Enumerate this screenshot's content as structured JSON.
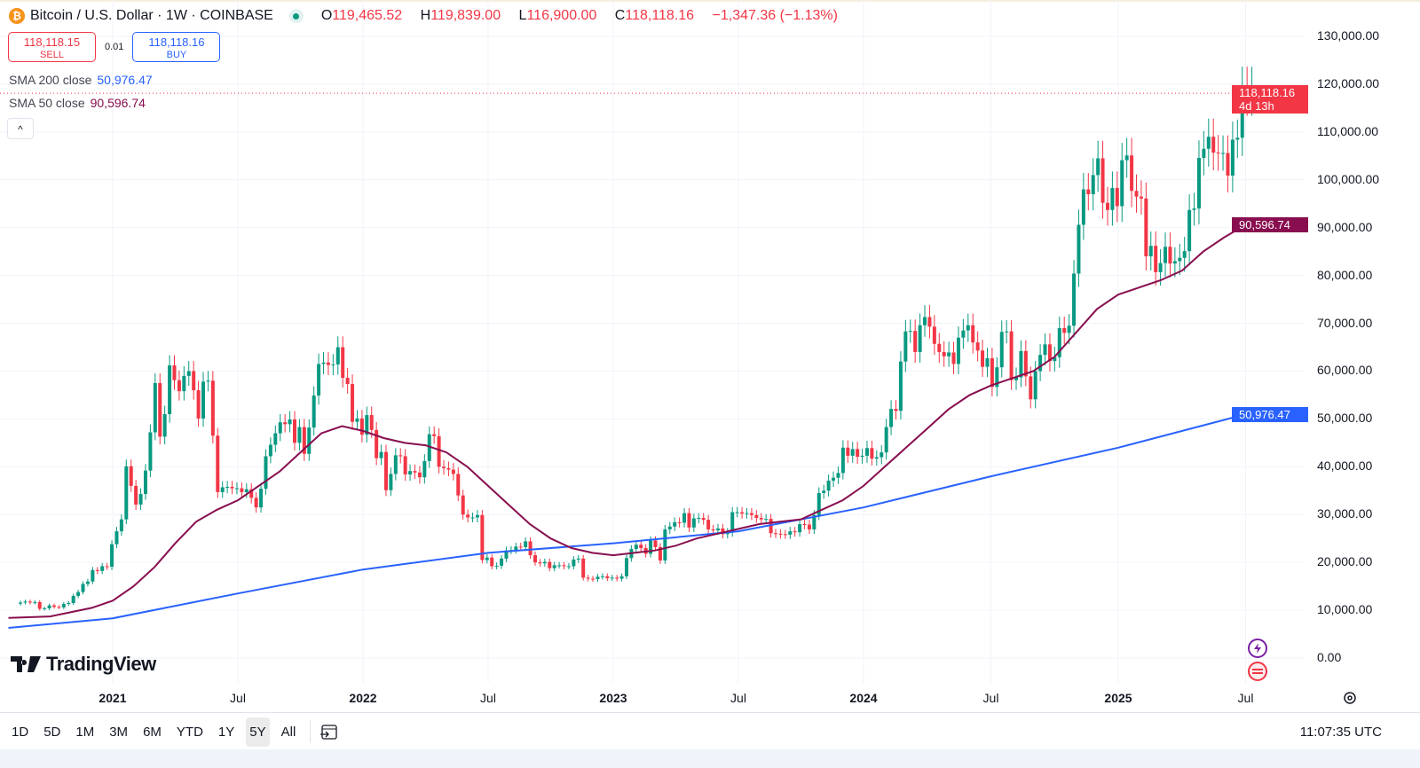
{
  "header": {
    "symbol": "Bitcoin / U.S. Dollar · 1W · COINBASE",
    "icon": "bitcoin-icon",
    "status": "market-open-dot",
    "ohlc": {
      "o_label": "O",
      "o": "119,465.52",
      "h_label": "H",
      "h": "119,839.00",
      "l_label": "L",
      "l": "116,900.00",
      "c_label": "C",
      "c": "118,118.16",
      "change": "−1,347.36 (−1.13%)"
    }
  },
  "trade": {
    "sell_price": "118,118.15",
    "sell_label": "SELL",
    "spread": "0.01",
    "buy_price": "118,118.16",
    "buy_label": "BUY"
  },
  "indicators": [
    {
      "label": "SMA 200 close",
      "value": "50,976.47",
      "color": "#2962ff"
    },
    {
      "label": "SMA 50 close",
      "value": "90,596.74",
      "color": "#880e4f"
    }
  ],
  "price_tag": {
    "price": "118,118.16",
    "countdown": "4d 13h",
    "color": "#f23645"
  },
  "bottom": {
    "ranges": [
      "1D",
      "5D",
      "1M",
      "3M",
      "6M",
      "YTD",
      "1Y",
      "5Y",
      "All"
    ],
    "active": "5Y",
    "clock": "11:07:35 UTC",
    "goto_icon": "calendar-goto-icon",
    "settings_icon": "gear-icon"
  },
  "logo": "TradingView",
  "colors": {
    "up": "#089981",
    "down": "#f23645",
    "grid": "#f0f3fa"
  },
  "chart_data": {
    "type": "candlestick",
    "interval": "1W",
    "yticks": [
      "130,000.00",
      "120,000.00",
      "110,000.00",
      "100,000.00",
      "90,000.00",
      "80,000.00",
      "70,000.00",
      "60,000.00",
      "50,000.00",
      "40,000.00",
      "30,000.00",
      "20,000.00",
      "10,000.00",
      "0.00"
    ],
    "ylim": [
      0,
      130000
    ],
    "xticks": [
      {
        "label": "2021",
        "date": "2021-01",
        "major": true
      },
      {
        "label": "Jul",
        "date": "2021-07"
      },
      {
        "label": "2022",
        "date": "2022-01",
        "major": true
      },
      {
        "label": "Jul",
        "date": "2022-07"
      },
      {
        "label": "2023",
        "date": "2023-01",
        "major": true
      },
      {
        "label": "Jul",
        "date": "2023-07"
      },
      {
        "label": "2024",
        "date": "2024-01",
        "major": true
      },
      {
        "label": "Jul",
        "date": "2024-07"
      },
      {
        "label": "2025",
        "date": "2025-01",
        "major": true
      },
      {
        "label": "Jul",
        "date": "2025-07"
      }
    ],
    "weekly_close_thousands": [
      11.6,
      11.8,
      11.6,
      11.7,
      10.3,
      10.4,
      11.0,
      10.7,
      10.6,
      11.3,
      11.5,
      13.0,
      13.8,
      15.5,
      16.0,
      18.4,
      18.2,
      19.2,
      19.1,
      23.8,
      26.5,
      29.0,
      40.1,
      36.0,
      32.1,
      34.3,
      39.2,
      47.2,
      57.5,
      46.3,
      51.0,
      61.2,
      58.1,
      55.8,
      59.0,
      60.0,
      56.0,
      50.1,
      57.8,
      58.0,
      46.5,
      34.7,
      35.7,
      35.8,
      35.5,
      35.5,
      34.7,
      35.3,
      33.5,
      31.5,
      35.4,
      42.2,
      44.6,
      47.0,
      49.3,
      48.9,
      49.9,
      45.0,
      48.3,
      42.7,
      48.2,
      54.9,
      61.5,
      61.8,
      61.3,
      61.4,
      65.0,
      58.6,
      57.3,
      49.4,
      50.1,
      46.7,
      50.8,
      47.7,
      41.8,
      43.1,
      35.1,
      38.5,
      42.4,
      42.2,
      38.4,
      39.1,
      38.8,
      37.8,
      41.2,
      46.8,
      46.4,
      40.0,
      39.7,
      39.4,
      38.5,
      34.0,
      30.0,
      29.4,
      29.4,
      29.9,
      20.5,
      21.0,
      19.2,
      19.3,
      20.8,
      22.5,
      22.6,
      23.3,
      23.2,
      24.4,
      21.5,
      20.0,
      19.8,
      20.1,
      18.8,
      19.4,
      19.4,
      19.2,
      19.2,
      20.6,
      20.8,
      16.8,
      16.6,
      16.5,
      17.0,
      17.1,
      16.7,
      16.8,
      16.6,
      17.1,
      20.9,
      22.8,
      23.7,
      23.0,
      21.8,
      24.6,
      23.2,
      20.4,
      26.9,
      27.5,
      28.4,
      28.3,
      30.3,
      27.3,
      29.2,
      29.3,
      28.9,
      26.9,
      26.7,
      27.1,
      25.9,
      26.3,
      30.5,
      30.5,
      30.2,
      30.3,
      29.9,
      29.3,
      29.0,
      29.1,
      26.1,
      26.0,
      25.9,
      25.8,
      26.5,
      26.3,
      28.0,
      27.9,
      26.9,
      29.9,
      34.5,
      35.0,
      37.1,
      37.7,
      38.7,
      44.0,
      42.3,
      43.7,
      42.1,
      42.3,
      43.9,
      41.7,
      42.0,
      43.0,
      48.3,
      52.1,
      51.7,
      62.0,
      68.3,
      68.4,
      64.0,
      69.6,
      71.3,
      69.3,
      65.7,
      64.0,
      63.1,
      63.9,
      61.5,
      67.0,
      68.5,
      69.6,
      66.0,
      64.3,
      60.9,
      62.7,
      56.7,
      60.8,
      68.2,
      68.3,
      58.1,
      58.7,
      64.2,
      58.9,
      54.1,
      60.0,
      63.4,
      65.6,
      62.1,
      62.9,
      69.0,
      68.0,
      69.5,
      80.4,
      90.6,
      98.0,
      97.0,
      101.0,
      104.5,
      95.2,
      93.7,
      98.3,
      94.5,
      104.1,
      105.1,
      97.7,
      96.5,
      96.1,
      84.0,
      86.2,
      80.7,
      82.6,
      86.0,
      82.5,
      83.0,
      83.7,
      85.1,
      93.7,
      94.0,
      104.6,
      106.5,
      109.0,
      105.7,
      105.6,
      105.6,
      100.9,
      108.4,
      108.8,
      119.5,
      117.5,
      119.47,
      118.12
    ],
    "last_candle": {
      "open": 119465.52,
      "high": 119839.0,
      "low": 116900.0,
      "close": 118118.16
    },
    "series": [
      {
        "name": "SMA 200 close",
        "color": "#2962ff",
        "points": [
          [
            "2020-08",
            6.3
          ],
          [
            "2021-01",
            8.3
          ],
          [
            "2021-07",
            13.5
          ],
          [
            "2022-01",
            18.5
          ],
          [
            "2022-07",
            22.0
          ],
          [
            "2023-01",
            24.0
          ],
          [
            "2023-07",
            26.5
          ],
          [
            "2024-01",
            31.5
          ],
          [
            "2024-07",
            38.0
          ],
          [
            "2025-01",
            44.0
          ],
          [
            "2025-07",
            50.98
          ]
        ]
      },
      {
        "name": "SMA 50 close",
        "color": "#880e4f",
        "points": [
          [
            "2020-08",
            8.4
          ],
          [
            "2020-10",
            8.7
          ],
          [
            "2020-12",
            10.5
          ],
          [
            "2021-01",
            12.0
          ],
          [
            "2021-02",
            15
          ],
          [
            "2021-03",
            19
          ],
          [
            "2021-04",
            24
          ],
          [
            "2021-05",
            28.5
          ],
          [
            "2021-06",
            31
          ],
          [
            "2021-07",
            33
          ],
          [
            "2021-08",
            36
          ],
          [
            "2021-09",
            39
          ],
          [
            "2021-10",
            43
          ],
          [
            "2021-11",
            47
          ],
          [
            "2021-12",
            48.5
          ],
          [
            "2022-01",
            47.5
          ],
          [
            "2022-02",
            46
          ],
          [
            "2022-03",
            45
          ],
          [
            "2022-04",
            44.5
          ],
          [
            "2022-05",
            43
          ],
          [
            "2022-06",
            40
          ],
          [
            "2022-07",
            36
          ],
          [
            "2022-08",
            32
          ],
          [
            "2022-09",
            28
          ],
          [
            "2022-10",
            25
          ],
          [
            "2022-11",
            23
          ],
          [
            "2022-12",
            22
          ],
          [
            "2023-01",
            21.5
          ],
          [
            "2023-02",
            22
          ],
          [
            "2023-03",
            22.5
          ],
          [
            "2023-04",
            23.5
          ],
          [
            "2023-05",
            25
          ],
          [
            "2023-06",
            26
          ],
          [
            "2023-07",
            27
          ],
          [
            "2023-08",
            28
          ],
          [
            "2023-09",
            28.5
          ],
          [
            "2023-10",
            29
          ],
          [
            "2023-11",
            31
          ],
          [
            "2023-12",
            33
          ],
          [
            "2024-01",
            36
          ],
          [
            "2024-02",
            40
          ],
          [
            "2024-03",
            44
          ],
          [
            "2024-04",
            48
          ],
          [
            "2024-05",
            52
          ],
          [
            "2024-06",
            55
          ],
          [
            "2024-07",
            57
          ],
          [
            "2024-08",
            58.5
          ],
          [
            "2024-09",
            60
          ],
          [
            "2024-10",
            63
          ],
          [
            "2024-11",
            68
          ],
          [
            "2024-12",
            73
          ],
          [
            "2025-01",
            76
          ],
          [
            "2025-02",
            77.5
          ],
          [
            "2025-03",
            79
          ],
          [
            "2025-04",
            81
          ],
          [
            "2025-05",
            85
          ],
          [
            "2025-06",
            88
          ],
          [
            "2025-07",
            90.6
          ]
        ]
      }
    ]
  }
}
